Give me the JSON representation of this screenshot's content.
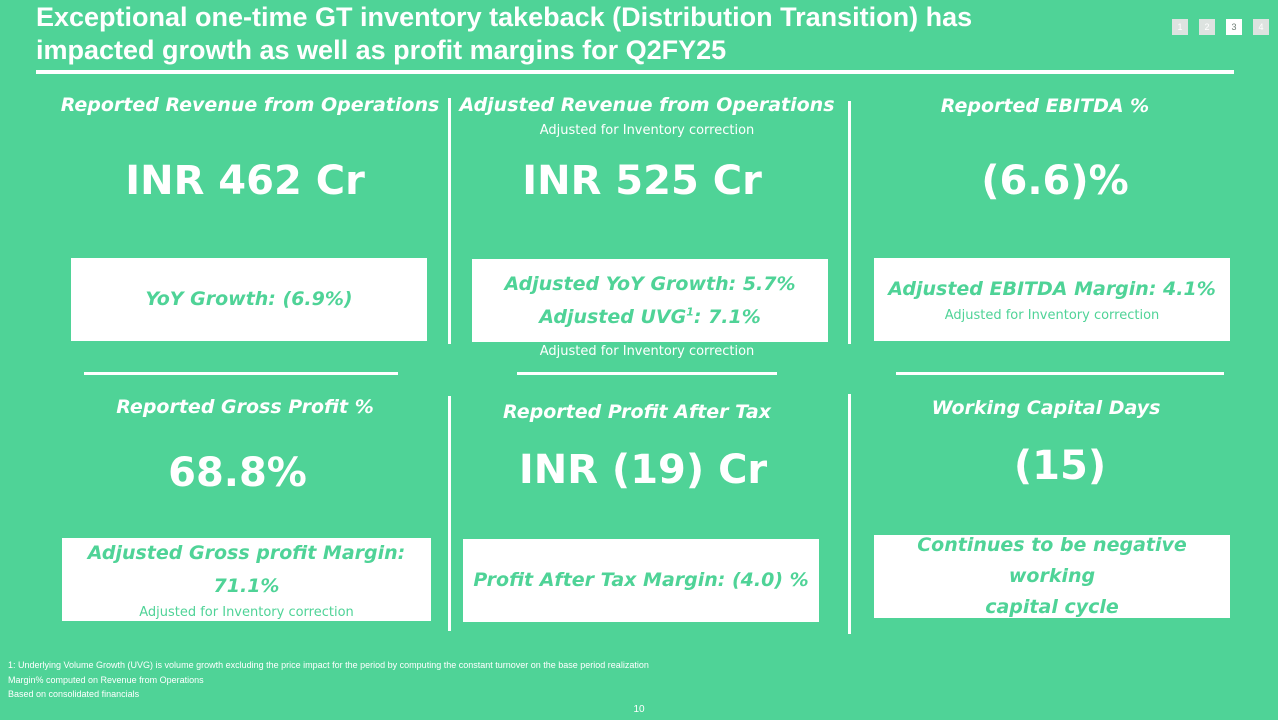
{
  "slide": {
    "title_line1": "Exceptional one-time GT inventory takeback (Distribution Transition) has",
    "title_line2": "impacted growth as well as profit margins for Q2FY25",
    "pager": [
      "1",
      "2",
      "3",
      "4"
    ],
    "active_page": "3",
    "page_number": "10"
  },
  "cards": {
    "revenue": {
      "label": "Reported Revenue from Operations",
      "value": "INR 462 Cr",
      "box_text": "YoY Growth: (6.9%)"
    },
    "adj_revenue": {
      "label": "Adjusted Revenue from Operations",
      "sublabel": "Adjusted for Inventory correction",
      "value": "INR 525 Cr",
      "box_line1": "Adjusted YoY Growth: 5.7%",
      "box_line2_pre": "Adjusted UVG",
      "box_line2_sup": "1",
      "box_line2_post": ": 7.1%",
      "box_note": "Adjusted for Inventory correction"
    },
    "ebitda": {
      "label": "Reported EBITDA %",
      "value": "(6.6)%",
      "box_text": "Adjusted EBITDA Margin: 4.1%",
      "box_note": "Adjusted for Inventory correction"
    },
    "gross_profit": {
      "label": "Reported Gross Profit %",
      "value": "68.8%",
      "box_text": "Adjusted Gross profit Margin: 71.1%",
      "box_note": "Adjusted for Inventory correction"
    },
    "pat": {
      "label": "Reported Profit After Tax",
      "value": "INR (19) Cr",
      "box_text": "Profit After Tax Margin: (4.0) %"
    },
    "wc": {
      "label": "Working Capital Days",
      "value": "(15)",
      "box_line1": "Continues to be negative working",
      "box_line2": "capital cycle"
    }
  },
  "footnotes": {
    "line1": "1: Underlying Volume Growth (UVG) is volume growth excluding the price impact for the period by computing the constant turnover on the base period realization",
    "line2": "Margin% computed on Revenue from Operations",
    "line3": "Based on consolidated financials"
  },
  "colors": {
    "background": "#4fd397",
    "box": "#ffffff",
    "box_text": "#4fd397"
  }
}
